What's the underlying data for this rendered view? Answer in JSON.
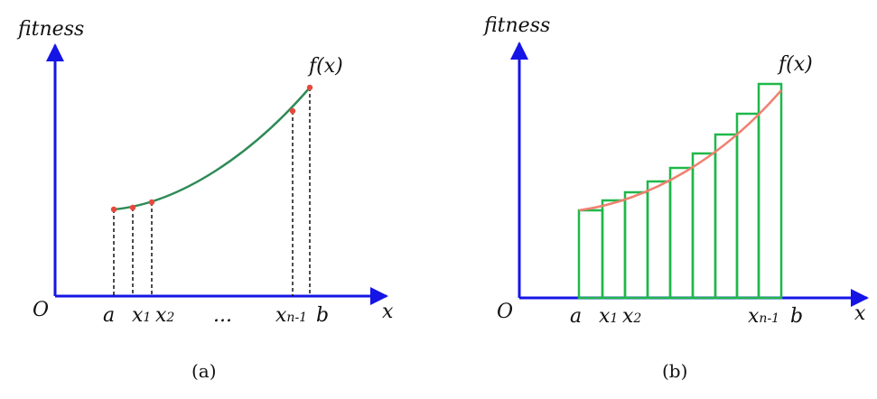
{
  "panel_a": {
    "y_axis_label": "fitness",
    "x_axis_label": "x",
    "origin_label": "O",
    "curve_label": "f(x)",
    "x_ticks": [
      {
        "main": "a",
        "sub": ""
      },
      {
        "main": "x",
        "sub": "1"
      },
      {
        "main": "x",
        "sub": "2"
      },
      {
        "main": "...",
        "sub": ""
      },
      {
        "main": "x",
        "sub": "n-1"
      },
      {
        "main": "b",
        "sub": ""
      }
    ],
    "caption": "(a)"
  },
  "panel_b": {
    "y_axis_label": "fitness",
    "x_axis_label": "x",
    "origin_label": "O",
    "curve_label": "f(x)",
    "x_ticks": [
      {
        "main": "a",
        "sub": ""
      },
      {
        "main": "x",
        "sub": "1"
      },
      {
        "main": "x",
        "sub": "2"
      },
      {
        "main": "x",
        "sub": "n-1"
      },
      {
        "main": "b",
        "sub": ""
      }
    ],
    "caption": "(b)"
  },
  "colors": {
    "axis": "#1515e6",
    "curve_a": "#2e8b57",
    "points": "#e8483c",
    "bars": "#1fb84a",
    "curve_b": "#f08070",
    "dashed": "#111111"
  }
}
